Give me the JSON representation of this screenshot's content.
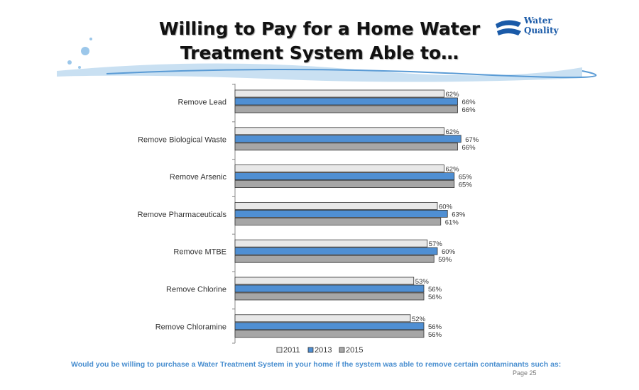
{
  "slide": {
    "title_line1": "Willing to Pay for a Home Water",
    "title_line2": "Treatment System Able to…",
    "logo_text_1": "Water",
    "logo_text_2": "Quality",
    "question": "Would you be willing to purchase a Water Treatment System in your home if the system was able to remove certain contaminants such as:",
    "page": "Page 25"
  },
  "chart_data": {
    "type": "bar",
    "orientation": "horizontal",
    "categories": [
      "Remove Lead",
      "Remove Biological Waste",
      "Remove Arsenic",
      "Remove Pharmaceuticals",
      "Remove MTBE",
      "Remove Chlorine",
      "Remove Chloramine"
    ],
    "series": [
      {
        "name": "2011",
        "color": "#e8e8e8",
        "values": [
          62,
          62,
          62,
          60,
          57,
          53,
          52
        ]
      },
      {
        "name": "2013",
        "color": "#4f8fd3",
        "values": [
          66,
          67,
          65,
          63,
          60,
          56,
          56
        ]
      },
      {
        "name": "2015",
        "color": "#a6a6a6",
        "values": [
          66,
          66,
          65,
          61,
          59,
          56,
          56
        ]
      }
    ],
    "xlim": [
      0,
      100
    ],
    "value_suffix": "%",
    "legend": "bottom",
    "grid": false
  }
}
